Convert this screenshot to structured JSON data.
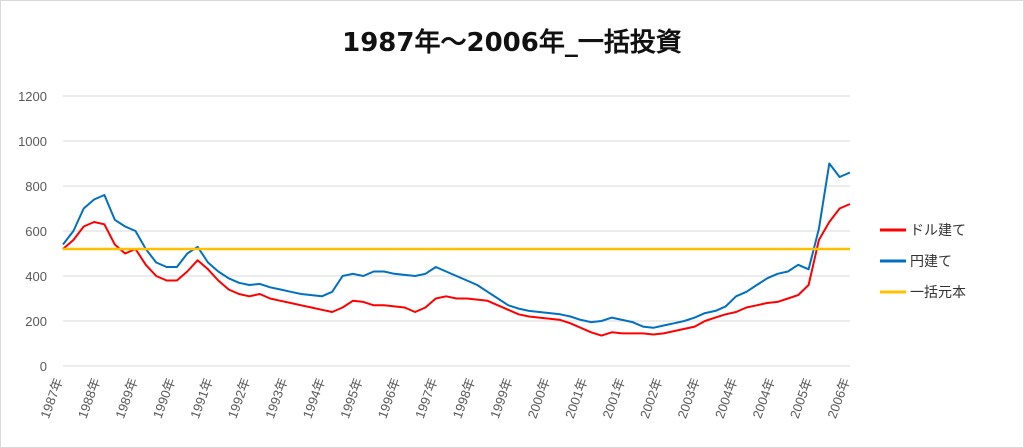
{
  "chart_data": {
    "type": "line",
    "title": "1987年～2006年_一括投資",
    "xlabel": "",
    "ylabel": "",
    "ylim": [
      0,
      1200
    ],
    "yticks": [
      0,
      200,
      400,
      600,
      800,
      1000,
      1200
    ],
    "grid": true,
    "legend_position": "right",
    "xticks": [
      "1987年",
      "1988年",
      "1989年",
      "1990年",
      "1991年",
      "1992年",
      "1993年",
      "1994年",
      "1995年",
      "1996年",
      "1997年",
      "1998年",
      "1999年",
      "2000年",
      "2001年",
      "2001年",
      "2002年",
      "2003年",
      "2004年",
      "2004年",
      "2005年",
      "2006年"
    ],
    "x": [
      1987.0,
      1987.25,
      1987.5,
      1987.75,
      1988.0,
      1988.25,
      1988.5,
      1988.75,
      1989.0,
      1989.25,
      1989.5,
      1989.75,
      1990.0,
      1990.25,
      1990.5,
      1990.75,
      1991.0,
      1991.25,
      1991.5,
      1991.75,
      1992.0,
      1992.25,
      1992.5,
      1992.75,
      1993.0,
      1993.25,
      1993.5,
      1993.75,
      1994.0,
      1994.25,
      1994.5,
      1994.75,
      1995.0,
      1995.25,
      1995.5,
      1995.75,
      1996.0,
      1996.25,
      1996.5,
      1996.75,
      1997.0,
      1997.25,
      1997.5,
      1997.75,
      1998.0,
      1998.25,
      1998.5,
      1998.75,
      1999.0,
      1999.25,
      1999.5,
      1999.75,
      2000.0,
      2000.25,
      2000.5,
      2000.75,
      2001.0,
      2001.25,
      2001.5,
      2001.75,
      2002.0,
      2002.25,
      2002.5,
      2002.75,
      2003.0,
      2003.25,
      2003.5,
      2003.75,
      2004.0,
      2004.25,
      2004.5,
      2004.75,
      2005.0,
      2005.25,
      2005.5,
      2005.75,
      2006.0
    ],
    "series": [
      {
        "name": "ドル建て",
        "color": "#ff0000",
        "values": [
          520,
          560,
          620,
          640,
          630,
          540,
          500,
          520,
          450,
          400,
          380,
          380,
          420,
          470,
          430,
          380,
          340,
          320,
          310,
          320,
          300,
          290,
          280,
          270,
          260,
          250,
          240,
          260,
          290,
          285,
          270,
          270,
          265,
          260,
          240,
          260,
          300,
          310,
          300,
          300,
          295,
          290,
          270,
          250,
          230,
          220,
          215,
          210,
          205,
          190,
          170,
          150,
          135,
          150,
          145,
          145,
          145,
          140,
          145,
          155,
          165,
          175,
          200,
          215,
          230,
          240,
          260,
          270,
          280,
          285,
          300,
          315,
          360,
          560,
          640,
          700,
          720
        ]
      },
      {
        "name": "円建て",
        "color": "#0070c0",
        "values": [
          540,
          600,
          700,
          740,
          760,
          650,
          620,
          600,
          520,
          460,
          440,
          440,
          500,
          530,
          460,
          420,
          390,
          370,
          360,
          365,
          350,
          340,
          330,
          320,
          315,
          310,
          330,
          400,
          410,
          400,
          420,
          420,
          410,
          405,
          400,
          410,
          440,
          420,
          400,
          380,
          360,
          330,
          300,
          270,
          255,
          245,
          240,
          235,
          230,
          220,
          205,
          195,
          200,
          215,
          205,
          195,
          175,
          170,
          180,
          190,
          200,
          215,
          235,
          245,
          265,
          310,
          330,
          360,
          390,
          410,
          420,
          450,
          430,
          610,
          900,
          840,
          860
        ]
      },
      {
        "name": "一括元本",
        "color": "#ffc000",
        "values": [
          520,
          520,
          520,
          520,
          520,
          520,
          520,
          520,
          520,
          520,
          520,
          520,
          520,
          520,
          520,
          520,
          520,
          520,
          520,
          520,
          520,
          520,
          520,
          520,
          520,
          520,
          520,
          520,
          520,
          520,
          520,
          520,
          520,
          520,
          520,
          520,
          520,
          520,
          520,
          520,
          520,
          520,
          520,
          520,
          520,
          520,
          520,
          520,
          520,
          520,
          520,
          520,
          520,
          520,
          520,
          520,
          520,
          520,
          520,
          520,
          520,
          520,
          520,
          520,
          520,
          520,
          520,
          520,
          520,
          520,
          520,
          520,
          520,
          520,
          520,
          520,
          520
        ]
      }
    ]
  }
}
